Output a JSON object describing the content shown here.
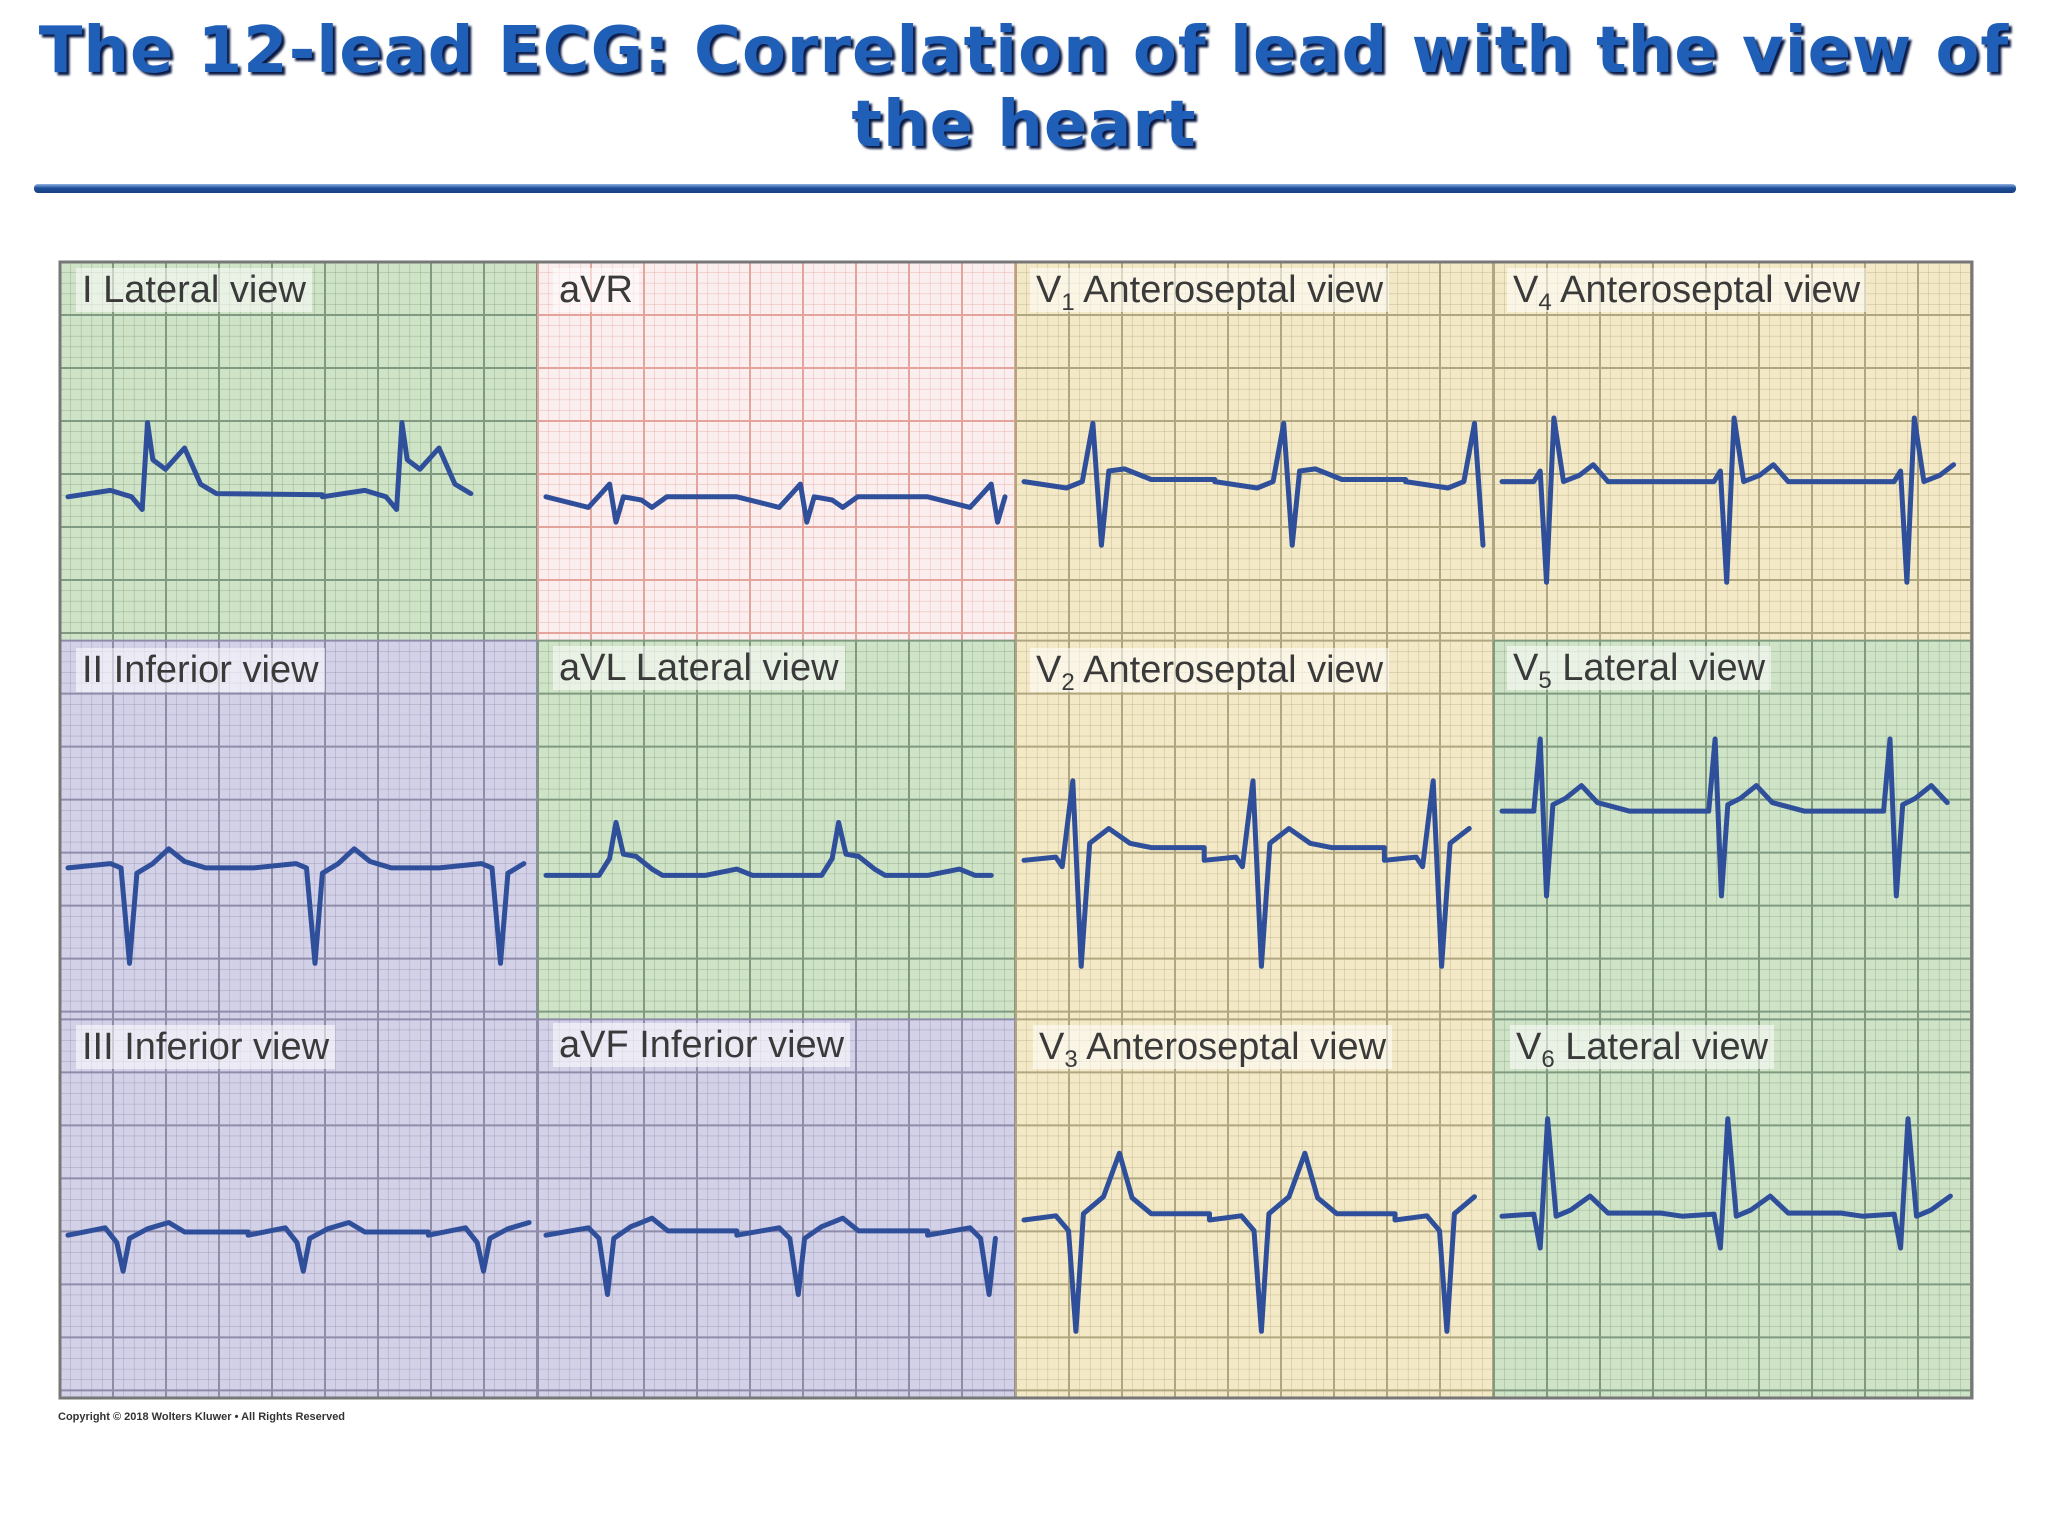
{
  "title": "The 12-lead ECG: Correlation of lead with the view of the heart",
  "copyright": "Copyright © 2018 Wolters Kluwer • All Rights Reserved",
  "view_colors": {
    "lateral": "#cfe3c6",
    "inferior": "#d3d1e8",
    "anteroseptal": "#f3e9c6",
    "none": "#fbeeee"
  },
  "leads": [
    {
      "id": "I",
      "label": "I Lateral view",
      "sub": "",
      "label_rest": "",
      "view": "lateral"
    },
    {
      "id": "aVR",
      "label": "aVR",
      "sub": "",
      "label_rest": "",
      "view": "none"
    },
    {
      "id": "V1",
      "label": "V",
      "sub": "1",
      "label_rest": " Anteroseptal view",
      "view": "anteroseptal"
    },
    {
      "id": "V4",
      "label": "V",
      "sub": "4",
      "label_rest": " Anteroseptal view",
      "view": "anteroseptal"
    },
    {
      "id": "II",
      "label": "II Inferior view",
      "sub": "",
      "label_rest": "",
      "view": "inferior"
    },
    {
      "id": "aVL",
      "label": "aVL Lateral view",
      "sub": "",
      "label_rest": "",
      "view": "lateral"
    },
    {
      "id": "V2",
      "label": "V",
      "sub": "2",
      "label_rest": " Anteroseptal view",
      "view": "anteroseptal"
    },
    {
      "id": "V5",
      "label": "V",
      "sub": "5",
      "label_rest": " Lateral view",
      "view": "lateral"
    },
    {
      "id": "III",
      "label": "III Inferior view",
      "sub": "",
      "label_rest": "",
      "view": "inferior"
    },
    {
      "id": "aVF",
      "label": "aVF Inferior view",
      "sub": "",
      "label_rest": "",
      "view": "inferior"
    },
    {
      "id": "V3",
      "label": "V",
      "sub": "3",
      "label_rest": " Anteroseptal view",
      "view": "anteroseptal"
    },
    {
      "id": "V6",
      "label": "V",
      "sub": "6",
      "label_rest": " Lateral view",
      "view": "lateral"
    }
  ]
}
